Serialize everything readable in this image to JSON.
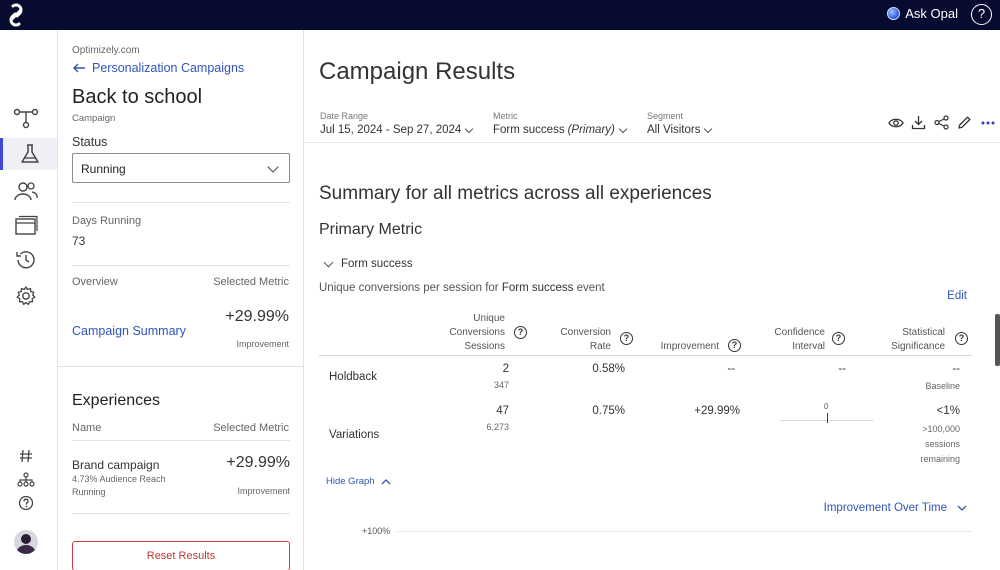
{
  "topbar": {
    "ask_opal": "Ask Opal",
    "help": "?"
  },
  "panel": {
    "org": "Optimizely.com",
    "back_link": "Personalization Campaigns",
    "campaign_name": "Back to school",
    "campaign_type": "Campaign",
    "status_label": "Status",
    "status_value": "Running",
    "days_running_label": "Days Running",
    "days_running_value": "73",
    "overview_label": "Overview",
    "selected_metric_label": "Selected Metric",
    "summary_link": "Campaign Summary",
    "summary_value": "+29.99%",
    "summary_sub": "Improvement",
    "experiences_title": "Experiences",
    "exp_name_header": "Name",
    "exp_metric_header": "Selected Metric",
    "experience": {
      "name": "Brand campaign",
      "reach": "4.73% Audience Reach",
      "state": "Running",
      "value": "+29.99%",
      "sub": "Improvement"
    },
    "reset_button": "Reset Results"
  },
  "main": {
    "title": "Campaign Results",
    "filters": {
      "date_label": "Date Range",
      "date_value": "Jul 15, 2024 - Sep 27, 2024",
      "metric_label": "Metric",
      "metric_value": "Form success",
      "metric_suffix": "(Primary)",
      "segment_label": "Segment",
      "segment_value": "All Visitors"
    },
    "summary_heading": "Summary for all metrics across all experiences",
    "primary_metric_heading": "Primary Metric",
    "metric_toggle": "Form success",
    "metric_desc_prefix": "Unique conversions per session for ",
    "metric_desc_event": "Form success",
    "metric_desc_suffix": " event",
    "edit_link": "Edit",
    "table": {
      "col_conversions": [
        "Unique",
        "Conversions",
        "Sessions"
      ],
      "col_rate": [
        "Conversion",
        "Rate"
      ],
      "col_improvement": "Improvement",
      "col_confidence": [
        "Confidence",
        "Interval"
      ],
      "col_significance": [
        "Statistical",
        "Significance"
      ],
      "rows": [
        {
          "name": "Holdback",
          "conversions": "2",
          "sessions": "347",
          "rate": "0.58%",
          "improvement": "--",
          "confidence": "--",
          "significance": "--",
          "significance_sub": "Baseline"
        },
        {
          "name": "Variations",
          "conversions": "47",
          "sessions": "6,273",
          "rate": "0.75%",
          "improvement": "+29.99%",
          "confidence_mark": "0",
          "significance": "<1%",
          "significance_sub": [
            ">100,000",
            "sessions",
            "remaining"
          ]
        }
      ]
    },
    "hide_graph": "Hide Graph",
    "graph_selector": "Improvement Over Time",
    "graph_y_tick": "+100%"
  }
}
